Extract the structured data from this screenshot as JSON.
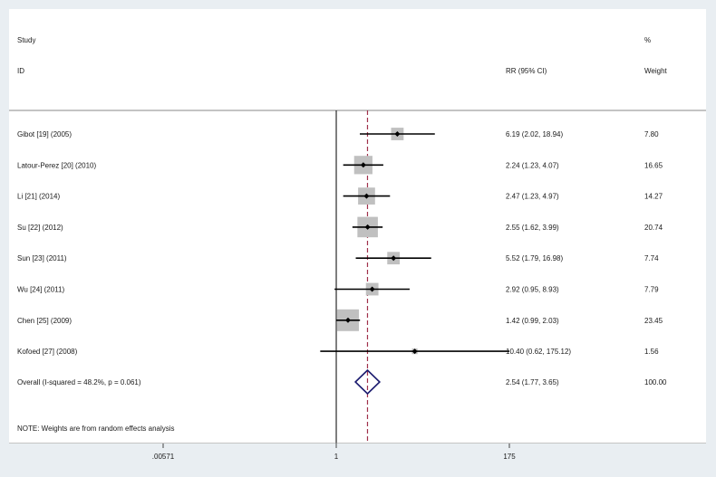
{
  "chart_data": {
    "type": "forest",
    "header": {
      "col_study_1": "Study",
      "col_study_2": "ID",
      "col_effect": "RR (95% CI)",
      "col_weight_1": "%",
      "col_weight_2": "Weight"
    },
    "studies": [
      {
        "label": "Gibot [19] (2005)",
        "rr": 6.19,
        "lo": 2.02,
        "hi": 18.94,
        "ci_text": "6.19 (2.02, 18.94)",
        "weight": 7.8,
        "weight_text": "7.80"
      },
      {
        "label": "Latour-Perez [20] (2010)",
        "rr": 2.24,
        "lo": 1.23,
        "hi": 4.07,
        "ci_text": "2.24 (1.23, 4.07)",
        "weight": 16.65,
        "weight_text": "16.65"
      },
      {
        "label": "Li [21] (2014)",
        "rr": 2.47,
        "lo": 1.23,
        "hi": 4.97,
        "ci_text": "2.47 (1.23, 4.97)",
        "weight": 14.27,
        "weight_text": "14.27"
      },
      {
        "label": "Su [22] (2012)",
        "rr": 2.55,
        "lo": 1.62,
        "hi": 3.99,
        "ci_text": "2.55 (1.62, 3.99)",
        "weight": 20.74,
        "weight_text": "20.74"
      },
      {
        "label": "Sun [23] (2011)",
        "rr": 5.52,
        "lo": 1.79,
        "hi": 16.98,
        "ci_text": "5.52 (1.79, 16.98)",
        "weight": 7.74,
        "weight_text": "7.74"
      },
      {
        "label": "Wu [24] (2011)",
        "rr": 2.92,
        "lo": 0.95,
        "hi": 8.93,
        "ci_text": "2.92 (0.95, 8.93)",
        "weight": 7.79,
        "weight_text": "7.79"
      },
      {
        "label": "Chen [25] (2009)",
        "rr": 1.42,
        "lo": 0.99,
        "hi": 2.03,
        "ci_text": "1.42 (0.99, 2.03)",
        "weight": 23.45,
        "weight_text": "23.45"
      },
      {
        "label": "Kofoed [27] (2008)",
        "rr": 10.4,
        "lo": 0.62,
        "hi": 175.12,
        "ci_text": "10.40 (0.62, 175.12)",
        "weight": 1.56,
        "weight_text": "1.56"
      }
    ],
    "overall": {
      "label": "Overall  (I-squared = 48.2%, p = 0.061)",
      "rr": 2.54,
      "lo": 1.77,
      "hi": 3.65,
      "ci_text": "2.54 (1.77, 3.65)",
      "weight_text": "100.00"
    },
    "note": "NOTE: Weights are from random effects analysis",
    "x_scale": "log",
    "x_ticks": [
      {
        "value": 0.00571,
        "label": ".00571"
      },
      {
        "value": 1,
        "label": "1"
      },
      {
        "value": 175,
        "label": "175"
      }
    ],
    "xlim": [
      0.00571,
      175
    ],
    "null_line": 1,
    "colors": {
      "box": "#c0c0c0",
      "ci": "#000000",
      "diamond": "#1a1a6e",
      "overall_line": "#a0304a"
    }
  }
}
